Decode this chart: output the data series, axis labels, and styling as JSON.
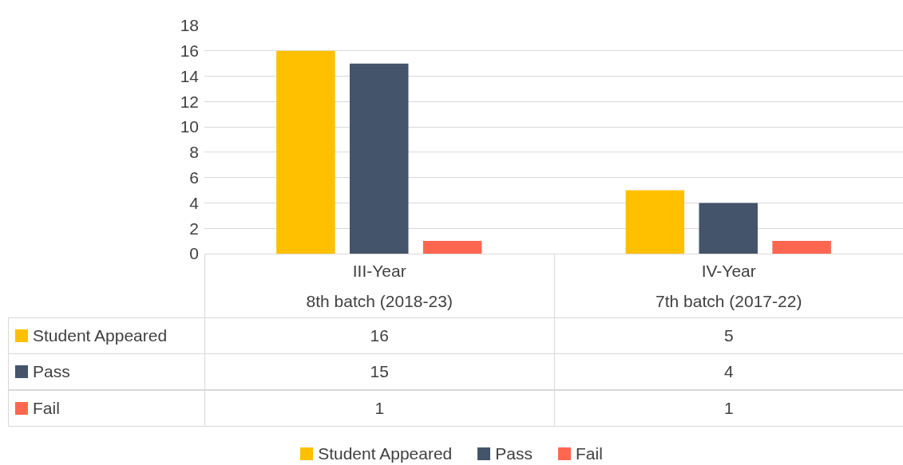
{
  "chart_data": {
    "type": "bar",
    "categories": [
      "III-Year\n8th batch (2018-23)",
      "IV-Year\n7th batch (2017-22)"
    ],
    "series": [
      {
        "name": "Student Appeared",
        "color": "#ffc000",
        "values": [
          16,
          5
        ]
      },
      {
        "name": "Pass",
        "color": "#44546a",
        "values": [
          15,
          4
        ]
      },
      {
        "name": "Fail",
        "color": "#ff6650",
        "values": [
          1,
          1
        ]
      }
    ],
    "ylim": [
      0,
      18
    ],
    "yticks": [
      0,
      2,
      4,
      6,
      8,
      10,
      12,
      14,
      16,
      18
    ],
    "grid": "y",
    "legend": "bottom",
    "data_labels": true
  }
}
